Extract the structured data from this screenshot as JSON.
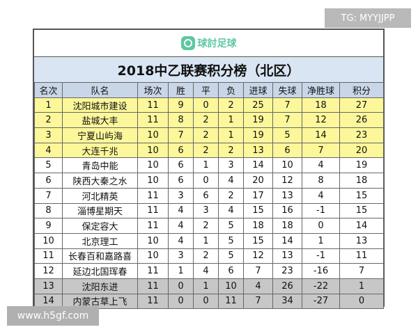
{
  "tg_badge": "TG: MYYJJPP",
  "watermark": "www.h5gf.com",
  "logo": {
    "name": "球討足球"
  },
  "title": "2018中乙联赛积分榜（北区）",
  "headers": [
    "名次",
    "队名",
    "场次",
    "胜",
    "平",
    "负",
    "进球",
    "失球",
    "净胜球",
    "积分"
  ],
  "colors": {
    "top_rows": "#fcf79a",
    "bottom_rows": "#c7c7c7",
    "header": "#c9d6e8",
    "title_band": "#d9e5f3"
  },
  "rows": [
    [
      "1",
      "沈阳城市建设",
      "11",
      "9",
      "0",
      "2",
      "25",
      "7",
      "18",
      "27"
    ],
    [
      "2",
      "盐城大丰",
      "11",
      "8",
      "2",
      "1",
      "19",
      "7",
      "12",
      "26"
    ],
    [
      "3",
      "宁夏山屿海",
      "10",
      "7",
      "2",
      "1",
      "19",
      "5",
      "14",
      "23"
    ],
    [
      "4",
      "大连千兆",
      "10",
      "6",
      "2",
      "2",
      "13",
      "6",
      "7",
      "20"
    ],
    [
      "5",
      "青岛中能",
      "10",
      "6",
      "1",
      "3",
      "14",
      "10",
      "4",
      "19"
    ],
    [
      "6",
      "陕西大秦之水",
      "10",
      "6",
      "0",
      "4",
      "20",
      "12",
      "8",
      "18"
    ],
    [
      "7",
      "河北精英",
      "11",
      "3",
      "6",
      "2",
      "17",
      "13",
      "4",
      "15"
    ],
    [
      "8",
      "淄博星期天",
      "11",
      "4",
      "3",
      "4",
      "15",
      "16",
      "-1",
      "15"
    ],
    [
      "9",
      "保定容大",
      "11",
      "4",
      "2",
      "5",
      "18",
      "18",
      "0",
      "14"
    ],
    [
      "10",
      "北京理工",
      "10",
      "4",
      "1",
      "5",
      "15",
      "14",
      "1",
      "13"
    ],
    [
      "11",
      "长春百和嘉路喜",
      "10",
      "3",
      "2",
      "5",
      "12",
      "13",
      "-1",
      "11"
    ],
    [
      "12",
      "延边北国珲春",
      "11",
      "1",
      "4",
      "6",
      "7",
      "23",
      "-16",
      "7"
    ],
    [
      "13",
      "沈阳东进",
      "11",
      "0",
      "1",
      "10",
      "4",
      "26",
      "-22",
      "1"
    ],
    [
      "14",
      "内蒙古草上飞",
      "11",
      "0",
      "0",
      "11",
      "7",
      "34",
      "-27",
      "0"
    ]
  ]
}
